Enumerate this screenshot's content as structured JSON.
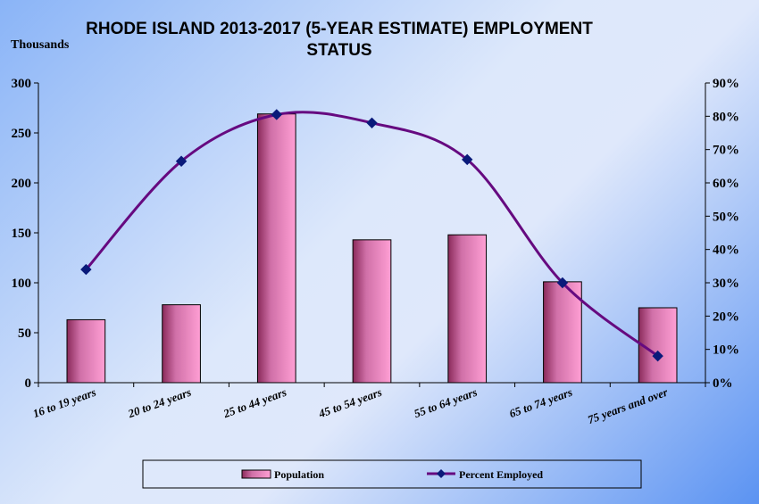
{
  "chart_data": {
    "type": "bar",
    "title": "RHODE ISLAND 2013-2017 (5-YEAR ESTIMATE) EMPLOYMENT STATUS",
    "title_lines": [
      "RHODE ISLAND 2013-2017 (5-YEAR ESTIMATE) EMPLOYMENT",
      "STATUS"
    ],
    "y_unit_label": "Thousands",
    "categories": [
      "16 to 19 years",
      "20 to 24 years",
      "25 to 44 years",
      "45 to 54 years",
      "55 to 64 years",
      "65 to 74 years",
      "75 years and over"
    ],
    "series": [
      {
        "name": "Population",
        "type": "bar",
        "axis": "left",
        "values": [
          63,
          78,
          269,
          143,
          148,
          101,
          75
        ]
      },
      {
        "name": "Percent Employed",
        "type": "line",
        "axis": "right",
        "values": [
          34,
          66.5,
          80.5,
          78,
          67,
          30,
          8
        ]
      }
    ],
    "y_left": {
      "min": 0,
      "max": 300,
      "ticks": [
        0,
        50,
        100,
        150,
        200,
        250,
        300
      ]
    },
    "y_right": {
      "min": 0,
      "max": 90,
      "ticks": [
        0,
        10,
        20,
        30,
        40,
        50,
        60,
        70,
        80,
        90
      ],
      "tick_labels": [
        "0%",
        "10%",
        "20%",
        "30%",
        "40%",
        "50%",
        "60%",
        "70%",
        "80%",
        "90%"
      ]
    },
    "grid": false,
    "legend_position": "bottom",
    "colors": {
      "bar_dark": "#8a2a5a",
      "bar_light": "#ff9fd4",
      "line": "#660a80",
      "marker": "#0a1a7a"
    }
  }
}
